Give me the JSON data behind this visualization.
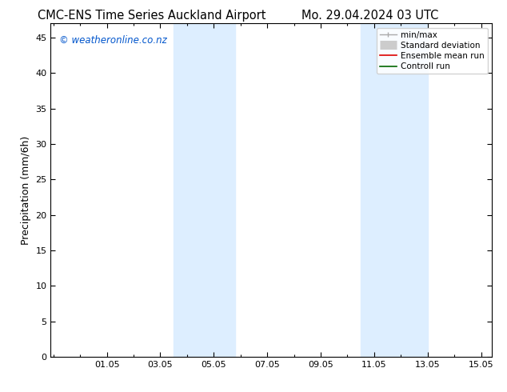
{
  "title_left": "CMC-ENS Time Series Auckland Airport",
  "title_right": "Mo. 29.04.2024 03 UTC",
  "ylabel": "Precipitation (mm/6h)",
  "ylim": [
    0,
    47
  ],
  "yticks": [
    0,
    5,
    10,
    15,
    20,
    25,
    30,
    35,
    40,
    45
  ],
  "xtick_labels": [
    "01.05",
    "03.05",
    "05.05",
    "07.05",
    "09.05",
    "11.05",
    "13.05",
    "15.05"
  ],
  "watermark": "© weatheronline.co.nz",
  "watermark_color": "#0055cc",
  "shade_color": "#ddeeff",
  "shade_alpha": 1.0,
  "background_color": "#ffffff",
  "tick_color": "#000000",
  "font_size_title": 10.5,
  "font_size_axis": 9,
  "font_size_tick": 8,
  "font_size_legend": 7.5,
  "font_size_watermark": 8.5
}
